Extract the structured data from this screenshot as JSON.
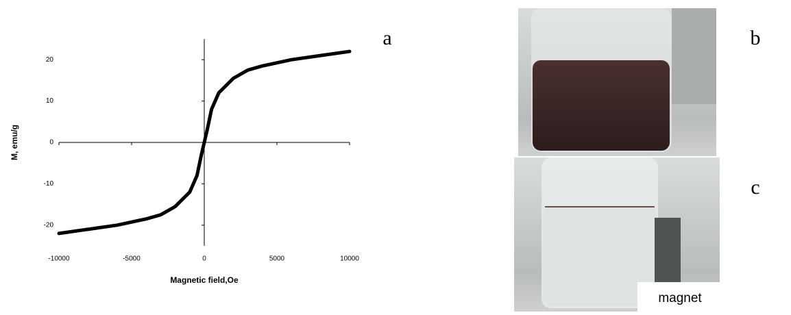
{
  "chart_data": {
    "type": "line",
    "xlabel": "Magnetic field,Oe",
    "ylabel": "M, emu/g",
    "x": [
      -10000,
      -8000,
      -6000,
      -4000,
      -3000,
      -2000,
      -1000,
      -500,
      -200,
      0,
      200,
      500,
      1000,
      2000,
      3000,
      4000,
      6000,
      8000,
      10000
    ],
    "series": [
      {
        "color": "#000000",
        "values": [
          -22,
          -21,
          -20,
          -18.5,
          -17.5,
          -15.5,
          -12,
          -8,
          -3,
          0,
          3,
          8,
          12,
          15.5,
          17.5,
          18.5,
          20,
          21,
          22
        ]
      }
    ],
    "xlim": [
      -10000,
      10000
    ],
    "ylim": [
      -25,
      25
    ],
    "xticks": [
      -10000,
      -5000,
      0,
      5000,
      10000
    ],
    "yticks": [
      -20,
      -10,
      0,
      10,
      20
    ]
  },
  "panel_labels": [
    "a",
    "b",
    "c"
  ],
  "photo_caption": "magnet"
}
